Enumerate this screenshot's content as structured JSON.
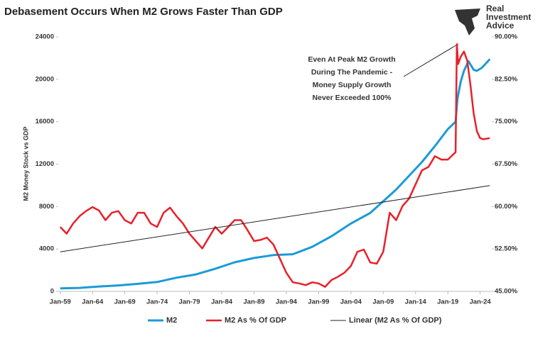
{
  "chart_data": {
    "type": "line",
    "title": "Debasement Occurs When M2 Grows Faster Than GDP",
    "logo": [
      "Real",
      "Investment",
      "Advice"
    ],
    "ylabel": "M2 Money Stock vs GDP",
    "annotation": [
      "Even At Peak M2 Growth",
      "During The Pandemic -",
      "Money Supply Growth",
      "Never Exceeded 100%"
    ],
    "xlim": [
      1958.7,
      2025.8
    ],
    "xticks": [
      {
        "value": 1959,
        "label": "Jan-59"
      },
      {
        "value": 1964,
        "label": "Jan-64"
      },
      {
        "value": 1969,
        "label": "Jan-69"
      },
      {
        "value": 1974,
        "label": "Jan-74"
      },
      {
        "value": 1979,
        "label": "Jan-79"
      },
      {
        "value": 1984,
        "label": "Jan-84"
      },
      {
        "value": 1989,
        "label": "Jan-89"
      },
      {
        "value": 1994,
        "label": "Jan-94"
      },
      {
        "value": 1999,
        "label": "Jan-99"
      },
      {
        "value": 2004,
        "label": "Jan-04"
      },
      {
        "value": 2009,
        "label": "Jan-09"
      },
      {
        "value": 2014,
        "label": "Jan-14"
      },
      {
        "value": 2019,
        "label": "Jan-19"
      },
      {
        "value": 2024,
        "label": "Jan-24"
      }
    ],
    "ylim": [
      0,
      24000
    ],
    "yticks": [
      0,
      4000,
      8000,
      12000,
      16000,
      20000,
      24000
    ],
    "y2lim": [
      45,
      90
    ],
    "y2ticks": [
      {
        "value": 45,
        "label": "45.00%"
      },
      {
        "value": 52.5,
        "label": "52.50%"
      },
      {
        "value": 60,
        "label": "60.00%"
      },
      {
        "value": 67.5,
        "label": "67.50%"
      },
      {
        "value": 75,
        "label": "75.00%"
      },
      {
        "value": 82.5,
        "label": "82.50%"
      },
      {
        "value": 90,
        "label": "90.00%"
      }
    ],
    "series": [
      {
        "name": "M2",
        "color": "#1a9bd7",
        "width": 3,
        "x": [
          1959,
          1962,
          1965,
          1968,
          1971,
          1974,
          1977,
          1980,
          1983,
          1986,
          1989,
          1992,
          1995,
          1998,
          2001,
          2004,
          2007,
          2009,
          2011,
          2013,
          2015,
          2017,
          2019,
          2020.2,
          2020.5,
          2021,
          2021.5,
          2022.2,
          2023,
          2023.5,
          2024.3,
          2025.5
        ],
        "values": [
          290,
          330,
          460,
          560,
          710,
          880,
          1290,
          1600,
          2130,
          2740,
          3150,
          3420,
          3500,
          4200,
          5200,
          6400,
          7400,
          8500,
          9600,
          10900,
          12200,
          13700,
          15300,
          16000,
          18200,
          19800,
          20800,
          21700,
          20900,
          20800,
          21100,
          21900
        ]
      },
      {
        "name": "M2 As % Of GDP",
        "color": "#e8202a",
        "width": 2.5,
        "axis": "y2",
        "x": [
          1959,
          1960,
          1961,
          1962,
          1963,
          1964,
          1965,
          1966,
          1967,
          1968,
          1969,
          1970,
          1971,
          1972,
          1973,
          1974,
          1975,
          1976,
          1977,
          1978,
          1979,
          1980,
          1981,
          1982,
          1983,
          1984,
          1985,
          1986,
          1987,
          1988,
          1989,
          1990,
          1991,
          1992,
          1993,
          1994,
          1995,
          1996,
          1997,
          1998,
          1999,
          2000,
          2001,
          2002,
          2003,
          2004,
          2005,
          2006,
          2007,
          2008,
          2009,
          2010,
          2011,
          2012,
          2013,
          2014,
          2015,
          2016,
          2017,
          2018,
          2019,
          2020.2,
          2020.4,
          2020.6,
          2021,
          2021.5,
          2022,
          2022.5,
          2023,
          2023.5,
          2024,
          2024.5,
          2025.5
        ],
        "values": [
          56.4,
          55.2,
          57,
          58.3,
          59.2,
          59.9,
          59.3,
          57.6,
          58.9,
          59.2,
          57.6,
          57,
          58.9,
          58.9,
          57,
          56.4,
          58.9,
          59.8,
          58.3,
          57,
          55.2,
          53.9,
          52.6,
          54.5,
          56.4,
          55.2,
          56.4,
          57.6,
          57.6,
          55.8,
          53.9,
          54.1,
          54.5,
          53.3,
          50.8,
          48.3,
          46.6,
          46.4,
          46.1,
          46.6,
          46.4,
          45.8,
          47,
          47.6,
          48.3,
          49.5,
          52,
          52.4,
          50.1,
          49.9,
          52,
          58.9,
          57.6,
          60.1,
          61.4,
          63.9,
          66.4,
          67,
          68.9,
          68.3,
          68.3,
          69.6,
          88.7,
          85.2,
          86.5,
          87.4,
          85.8,
          81.5,
          76.5,
          73.3,
          72.1,
          71.9,
          72.1
        ]
      },
      {
        "name": "Linear (M2 As % Of GDP)",
        "color": "#222222",
        "width": 1,
        "axis": "y2",
        "x": [
          1959,
          2025.5
        ],
        "values": [
          52,
          63.7
        ]
      }
    ]
  }
}
